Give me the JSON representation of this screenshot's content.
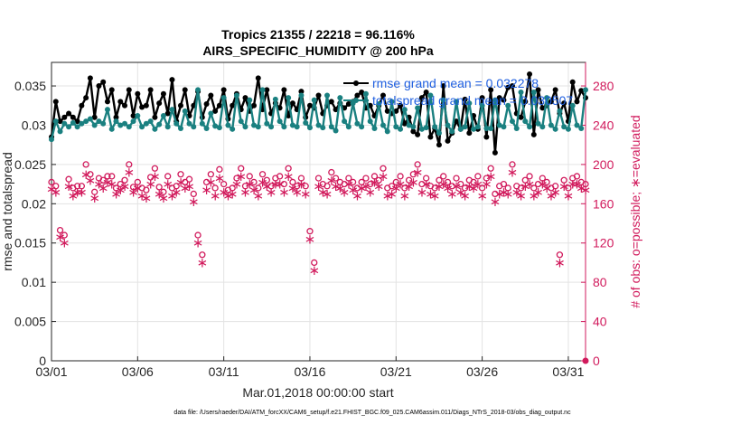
{
  "chart_data": {
    "type": "line",
    "title": "Tropics 21355 / 22218 = 96.116%",
    "subtitle": "AIRS_SPECIFIC_HUMIDITY @ 200 hPa",
    "xlabel": "Mar.01,2018 00:00:00 start",
    "ylabel_left": "rmse and totalspread",
    "ylabel_right": "# of obs: o=possible; ∗=evaluated",
    "x_ticks": [
      "03/01",
      "03/06",
      "03/11",
      "03/16",
      "03/21",
      "03/26",
      "03/31"
    ],
    "x_tick_days": [
      0,
      5,
      10,
      15,
      20,
      25,
      30
    ],
    "xlim": [
      0,
      31
    ],
    "ylim_left": [
      0,
      0.038
    ],
    "y_ticks_left": [
      "0",
      "0.005",
      "0.01",
      "0.015",
      "0.02",
      "0.025",
      "0.03",
      "0.035"
    ],
    "y_tick_values_left": [
      0,
      0.005,
      0.01,
      0.015,
      0.02,
      0.025,
      0.03,
      0.035
    ],
    "ylim_right": [
      0,
      304
    ],
    "y_ticks_right": [
      "0",
      "40",
      "80",
      "120",
      "160",
      "200",
      "240",
      "280"
    ],
    "y_tick_values_right": [
      0,
      40,
      80,
      120,
      160,
      200,
      240,
      280
    ],
    "grid": true,
    "legend_position": "top-right",
    "legend": [
      "rmse grand mean = 0.032278",
      "totalspread grand mean = 0.030507"
    ],
    "colors": {
      "rmse": "#000000",
      "spread": "#1a8080",
      "obs": "#d11a5c",
      "legend_text": "#1f5fe0",
      "right_axis": "#d11a5c"
    },
    "series": [
      {
        "name": "rmse",
        "axis": "left",
        "x": [
          0,
          0.25,
          0.5,
          0.75,
          1,
          1.25,
          1.5,
          1.75,
          2,
          2.25,
          2.5,
          2.75,
          3,
          3.25,
          3.5,
          3.75,
          4,
          4.25,
          4.5,
          4.75,
          5,
          5.25,
          5.5,
          5.75,
          6,
          6.25,
          6.5,
          6.75,
          7,
          7.25,
          7.5,
          7.75,
          8,
          8.25,
          8.5,
          8.75,
          9,
          9.25,
          9.5,
          9.75,
          10,
          10.25,
          10.5,
          10.75,
          11,
          11.25,
          11.5,
          11.75,
          12,
          12.25,
          12.5,
          12.75,
          13,
          13.25,
          13.5,
          13.75,
          14,
          14.25,
          14.5,
          14.75,
          15,
          15.25,
          15.5,
          15.75,
          16,
          16.25,
          16.5,
          16.75,
          17,
          17.25,
          17.5,
          17.75,
          18,
          18.25,
          18.5,
          18.75,
          19,
          19.25,
          19.5,
          19.75,
          20,
          20.25,
          20.5,
          20.75,
          21,
          21.25,
          21.5,
          21.75,
          22,
          22.25,
          22.5,
          22.75,
          23,
          23.25,
          23.5,
          23.75,
          24,
          24.25,
          24.5,
          24.75,
          25,
          25.25,
          25.5,
          25.75,
          26,
          26.25,
          26.5,
          26.75,
          27,
          27.25,
          27.5,
          27.75,
          28,
          28.25,
          28.5,
          28.75,
          29,
          29.25,
          29.5,
          29.75,
          30,
          30.25,
          30.5,
          30.75,
          31
        ],
        "values": [
          0.0285,
          0.033,
          0.0305,
          0.031,
          0.0315,
          0.031,
          0.0305,
          0.0325,
          0.0335,
          0.036,
          0.031,
          0.035,
          0.0355,
          0.033,
          0.0345,
          0.031,
          0.033,
          0.0325,
          0.0345,
          0.0312,
          0.034,
          0.0323,
          0.0325,
          0.0345,
          0.031,
          0.0328,
          0.034,
          0.0315,
          0.0358,
          0.0305,
          0.0325,
          0.0345,
          0.0312,
          0.0325,
          0.0343,
          0.031,
          0.0327,
          0.0338,
          0.0318,
          0.0325,
          0.0345,
          0.0308,
          0.0325,
          0.034,
          0.032,
          0.0335,
          0.0318,
          0.0325,
          0.036,
          0.032,
          0.0345,
          0.0315,
          0.0328,
          0.0322,
          0.0345,
          0.0312,
          0.0328,
          0.032,
          0.0343,
          0.031,
          0.0325,
          0.0322,
          0.0338,
          0.0315,
          0.0325,
          0.033,
          0.032,
          0.0328,
          0.0322,
          0.0327,
          0.033,
          0.0338,
          0.0342,
          0.0322,
          0.0325,
          0.0312,
          0.0325,
          0.0338,
          0.0318,
          0.0315,
          0.0318,
          0.0325,
          0.0302,
          0.031,
          0.0292,
          0.0288,
          0.0335,
          0.0342,
          0.0285,
          0.0296,
          0.0275,
          0.035,
          0.028,
          0.029,
          0.0305,
          0.0295,
          0.0333,
          0.029,
          0.0312,
          0.0295,
          0.0335,
          0.0285,
          0.0345,
          0.0265,
          0.0335,
          0.0332,
          0.0348,
          0.035,
          0.0315,
          0.031,
          0.033,
          0.0365,
          0.0288,
          0.0345,
          0.0322,
          0.0325,
          0.033,
          0.0345,
          0.0315,
          0.0328,
          0.0305,
          0.0355,
          0.033,
          0.0344,
          0.0335
        ]
      },
      {
        "name": "totalspread",
        "axis": "left",
        "x": [
          0,
          0.25,
          0.5,
          0.75,
          1,
          1.25,
          1.5,
          1.75,
          2,
          2.25,
          2.5,
          2.75,
          3,
          3.25,
          3.5,
          3.75,
          4,
          4.25,
          4.5,
          4.75,
          5,
          5.25,
          5.5,
          5.75,
          6,
          6.25,
          6.5,
          6.75,
          7,
          7.25,
          7.5,
          7.75,
          8,
          8.25,
          8.5,
          8.75,
          9,
          9.25,
          9.5,
          9.75,
          10,
          10.25,
          10.5,
          10.75,
          11,
          11.25,
          11.5,
          11.75,
          12,
          12.25,
          12.5,
          12.75,
          13,
          13.25,
          13.5,
          13.75,
          14,
          14.25,
          14.5,
          14.75,
          15,
          15.25,
          15.5,
          15.75,
          16,
          16.25,
          16.5,
          16.75,
          17,
          17.25,
          17.5,
          17.75,
          18,
          18.25,
          18.5,
          18.75,
          19,
          19.25,
          19.5,
          19.75,
          20,
          20.25,
          20.5,
          20.75,
          21,
          21.25,
          21.5,
          21.75,
          22,
          22.25,
          22.5,
          22.75,
          23,
          23.25,
          23.5,
          23.75,
          24,
          24.25,
          24.5,
          24.75,
          25,
          25.25,
          25.5,
          25.75,
          26,
          26.25,
          26.5,
          26.75,
          27,
          27.25,
          27.5,
          27.75,
          28,
          28.25,
          28.5,
          28.75,
          29,
          29.25,
          29.5,
          29.75,
          30,
          30.25,
          30.5,
          30.75,
          31
        ],
        "values": [
          0.0282,
          0.0305,
          0.0292,
          0.0302,
          0.0298,
          0.0303,
          0.0298,
          0.0302,
          0.0305,
          0.0308,
          0.03,
          0.0305,
          0.0302,
          0.032,
          0.0295,
          0.0305,
          0.03,
          0.0302,
          0.0298,
          0.0305,
          0.0312,
          0.0298,
          0.0302,
          0.0305,
          0.0295,
          0.0301,
          0.0312,
          0.0298,
          0.032,
          0.0302,
          0.0296,
          0.0318,
          0.0302,
          0.0298,
          0.0345,
          0.0302,
          0.0296,
          0.0315,
          0.0299,
          0.0297,
          0.0335,
          0.03,
          0.0295,
          0.0338,
          0.0305,
          0.0298,
          0.0332,
          0.03,
          0.0298,
          0.0345,
          0.0302,
          0.0298,
          0.0333,
          0.0305,
          0.0298,
          0.0335,
          0.03,
          0.0298,
          0.0338,
          0.0303,
          0.0297,
          0.0332,
          0.03,
          0.0297,
          0.0338,
          0.0298,
          0.0293,
          0.0335,
          0.0305,
          0.0298,
          0.0328,
          0.0302,
          0.0298,
          0.034,
          0.0305,
          0.0296,
          0.0327,
          0.03,
          0.0292,
          0.033,
          0.0298,
          0.0295,
          0.032,
          0.03,
          0.0298,
          0.0322,
          0.0295,
          0.0297,
          0.0338,
          0.0298,
          0.029,
          0.0332,
          0.03,
          0.0292,
          0.033,
          0.0295,
          0.0298,
          0.0328,
          0.0295,
          0.0298,
          0.0325,
          0.0296,
          0.0296,
          0.0332,
          0.03,
          0.0298,
          0.0325,
          0.0305,
          0.0296,
          0.0342,
          0.0305,
          0.0298,
          0.0342,
          0.0302,
          0.0298,
          0.0335,
          0.03,
          0.0295,
          0.0318,
          0.0298,
          0.0295,
          0.0325,
          0.03,
          0.0296,
          0.0345
        ]
      },
      {
        "name": "obs possible",
        "axis": "right",
        "marker": "o",
        "x": [
          0,
          0.25,
          0.5,
          0.75,
          1,
          1.25,
          1.5,
          1.75,
          2,
          2.25,
          2.5,
          2.75,
          3,
          3.25,
          3.5,
          3.75,
          4,
          4.25,
          4.5,
          4.75,
          5,
          5.25,
          5.5,
          5.75,
          6,
          6.25,
          6.5,
          6.75,
          7,
          7.25,
          7.5,
          7.75,
          8,
          8.25,
          8.5,
          8.75,
          9,
          9.25,
          9.5,
          9.75,
          10,
          10.25,
          10.5,
          10.75,
          11,
          11.25,
          11.5,
          11.75,
          12,
          12.25,
          12.5,
          12.75,
          13,
          13.25,
          13.5,
          13.75,
          14,
          14.25,
          14.5,
          14.75,
          15,
          15.25,
          15.5,
          15.75,
          16,
          16.25,
          16.5,
          16.75,
          17,
          17.25,
          17.5,
          17.75,
          18,
          18.25,
          18.5,
          18.75,
          19,
          19.25,
          19.5,
          19.75,
          20,
          20.25,
          20.5,
          20.75,
          21,
          21.25,
          21.5,
          21.75,
          22,
          22.25,
          22.5,
          22.75,
          23,
          23.25,
          23.5,
          23.75,
          24,
          24.25,
          24.5,
          24.75,
          25,
          25.25,
          25.5,
          25.75,
          26,
          26.25,
          26.5,
          26.75,
          27,
          27.25,
          27.5,
          27.75,
          28,
          28.25,
          28.5,
          28.75,
          29,
          29.25,
          29.5,
          29.75,
          30,
          30.25,
          30.5,
          30.75,
          31
        ],
        "values": [
          182,
          178,
          133,
          128,
          185,
          176,
          178,
          178,
          200,
          190,
          172,
          186,
          184,
          188,
          188,
          176,
          180,
          184,
          200,
          177,
          182,
          176,
          174,
          187,
          196,
          177,
          172,
          188,
          176,
          178,
          190,
          182,
          185,
          170,
          128,
          108,
          182,
          190,
          176,
          195,
          180,
          174,
          176,
          186,
          196,
          178,
          188,
          182,
          176,
          190,
          184,
          178,
          186,
          188,
          180,
          196,
          182,
          178,
          186,
          178,
          132,
          100,
          186,
          180,
          178,
          192,
          186,
          182,
          180,
          186,
          182,
          176,
          182,
          186,
          180,
          188,
          184,
          196,
          176,
          178,
          182,
          188,
          176,
          184,
          190,
          200,
          180,
          186,
          178,
          176,
          184,
          188,
          182,
          178,
          186,
          180,
          176,
          184,
          182,
          188,
          176,
          186,
          196,
          170,
          178,
          180,
          176,
          200,
          178,
          176,
          184,
          188,
          176,
          180,
          186,
          182,
          176,
          178,
          108,
          184,
          176,
          186,
          188,
          182,
          180
        ]
      },
      {
        "name": "obs evaluated",
        "axis": "right",
        "marker": "*",
        "x": [
          0,
          0.25,
          0.5,
          0.75,
          1,
          1.25,
          1.5,
          1.75,
          2,
          2.25,
          2.5,
          2.75,
          3,
          3.25,
          3.5,
          3.75,
          4,
          4.25,
          4.5,
          4.75,
          5,
          5.25,
          5.5,
          5.75,
          6,
          6.25,
          6.5,
          6.75,
          7,
          7.25,
          7.5,
          7.75,
          8,
          8.25,
          8.5,
          8.75,
          9,
          9.25,
          9.5,
          9.75,
          10,
          10.25,
          10.5,
          10.75,
          11,
          11.25,
          11.5,
          11.75,
          12,
          12.25,
          12.5,
          12.75,
          13,
          13.25,
          13.5,
          13.75,
          14,
          14.25,
          14.5,
          14.75,
          15,
          15.25,
          15.5,
          15.75,
          16,
          16.25,
          16.5,
          16.75,
          17,
          17.25,
          17.5,
          17.75,
          18,
          18.25,
          18.5,
          18.75,
          19,
          19.25,
          19.5,
          19.75,
          20,
          20.25,
          20.5,
          20.75,
          21,
          21.25,
          21.5,
          21.75,
          22,
          22.25,
          22.5,
          22.75,
          23,
          23.25,
          23.5,
          23.75,
          24,
          24.25,
          24.5,
          24.75,
          25,
          25.25,
          25.5,
          25.75,
          26,
          26.25,
          26.5,
          26.75,
          27,
          27.25,
          27.5,
          27.75,
          28,
          28.25,
          28.5,
          28.75,
          29,
          29.25,
          29.5,
          29.75,
          30,
          30.25,
          30.5,
          30.75,
          31
        ],
        "values": [
          175,
          172,
          126,
          120,
          178,
          168,
          172,
          172,
          190,
          184,
          166,
          180,
          176,
          182,
          180,
          170,
          174,
          178,
          192,
          172,
          176,
          168,
          166,
          180,
          188,
          170,
          166,
          180,
          168,
          172,
          182,
          176,
          178,
          162,
          120,
          100,
          174,
          182,
          168,
          186,
          172,
          168,
          170,
          180,
          188,
          172,
          180,
          174,
          168,
          182,
          178,
          172,
          180,
          180,
          172,
          188,
          176,
          172,
          180,
          170,
          124,
          92,
          178,
          172,
          170,
          184,
          178,
          176,
          172,
          180,
          174,
          168,
          176,
          178,
          172,
          182,
          178,
          188,
          168,
          170,
          176,
          180,
          168,
          178,
          182,
          192,
          172,
          180,
          170,
          168,
          178,
          180,
          176,
          170,
          178,
          172,
          168,
          178,
          176,
          180,
          168,
          180,
          188,
          162,
          170,
          172,
          170,
          192,
          172,
          168,
          178,
          180,
          168,
          172,
          180,
          176,
          168,
          172,
          100,
          178,
          168,
          180,
          180,
          176,
          174
        ]
      }
    ]
  },
  "footer": "data file: /Users/raeder/DAI/ATM_forcXX/CAM6_setup/f.e21.FHIST_BGC.f09_025.CAM6assim.011/Diags_NTrS_2018-03/obs_diag_output.nc"
}
